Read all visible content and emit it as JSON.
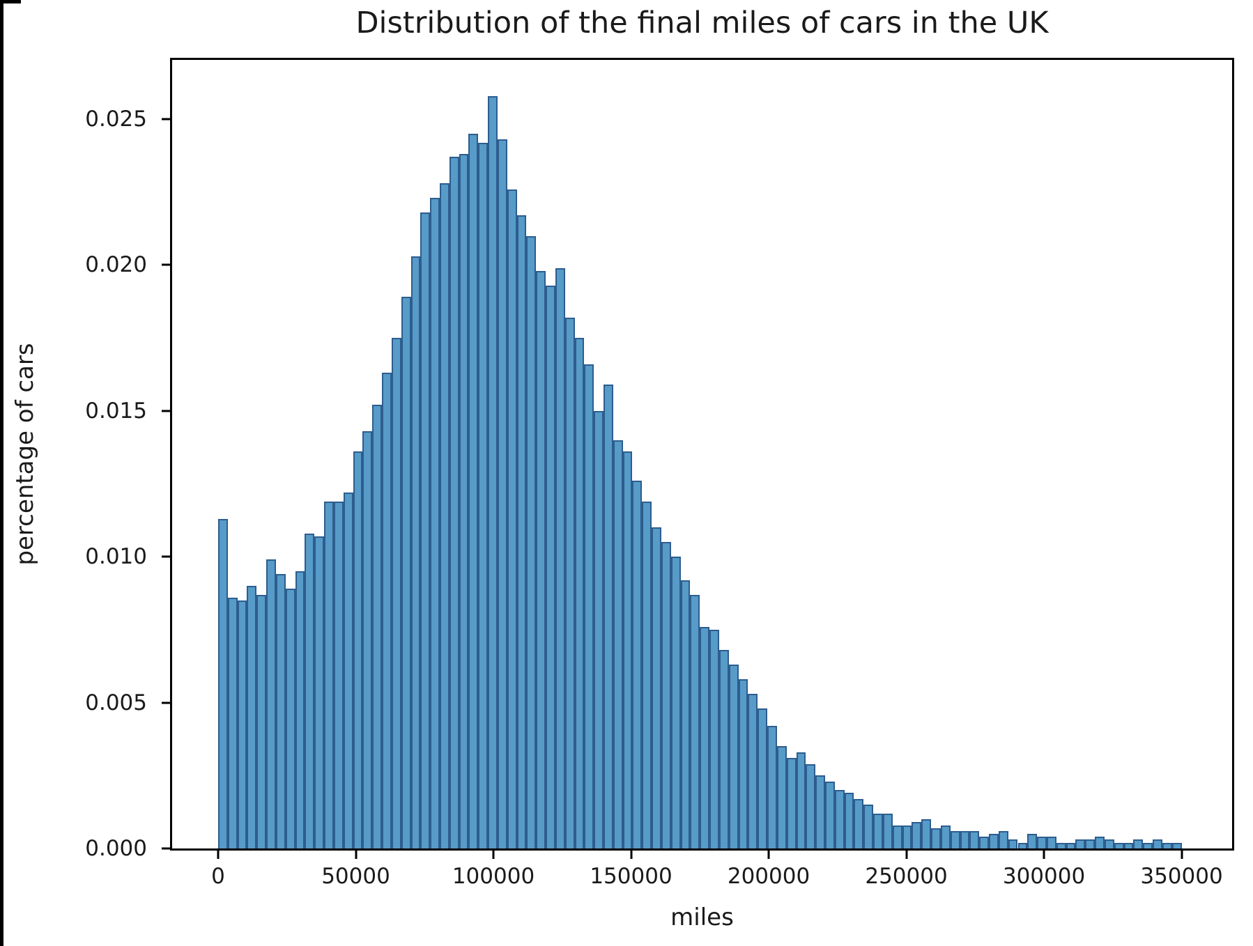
{
  "window": {
    "frame_color": "#000000"
  },
  "chart_data": {
    "type": "bar",
    "subtype": "histogram",
    "title": "Distribution of the final miles of cars in the UK",
    "xlabel": "miles",
    "ylabel": "percentage of cars",
    "bar_color": "#579bc8",
    "bar_edge_color": "#2d5d8e",
    "grid": false,
    "legend_position": "none",
    "bin_start": 0,
    "bin_width": 3500,
    "xlim": [
      -16709,
      368347
    ],
    "ylim": [
      0,
      0.02703
    ],
    "xticks": [
      0,
      50000,
      100000,
      150000,
      200000,
      250000,
      300000,
      350000
    ],
    "xtick_labels": [
      "0",
      "50000",
      "100000",
      "150000",
      "200000",
      "250000",
      "300000",
      "350000"
    ],
    "yticks": [
      0.0,
      0.005,
      0.01,
      0.015,
      0.02,
      0.025
    ],
    "ytick_labels": [
      "0.000",
      "0.005",
      "0.010",
      "0.015",
      "0.020",
      "0.025"
    ],
    "values": [
      0.0113,
      0.0086,
      0.0085,
      0.009,
      0.0087,
      0.0099,
      0.0094,
      0.0089,
      0.0095,
      0.0108,
      0.0107,
      0.0119,
      0.0119,
      0.0122,
      0.0136,
      0.0143,
      0.0152,
      0.0163,
      0.0175,
      0.0189,
      0.0203,
      0.0218,
      0.0223,
      0.0228,
      0.0237,
      0.0238,
      0.0245,
      0.0242,
      0.0258,
      0.0243,
      0.0226,
      0.0217,
      0.021,
      0.0198,
      0.0193,
      0.0199,
      0.0182,
      0.0175,
      0.0166,
      0.015,
      0.0159,
      0.014,
      0.0136,
      0.0126,
      0.0119,
      0.011,
      0.0105,
      0.01,
      0.0092,
      0.0087,
      0.0076,
      0.0075,
      0.0068,
      0.0063,
      0.0058,
      0.0053,
      0.0048,
      0.0042,
      0.0035,
      0.0031,
      0.0033,
      0.0029,
      0.0025,
      0.0023,
      0.002,
      0.0019,
      0.0017,
      0.0015,
      0.0012,
      0.0012,
      0.0008,
      0.0008,
      0.0009,
      0.001,
      0.0007,
      0.0008,
      0.0006,
      0.0006,
      0.0006,
      0.0004,
      0.0005,
      0.0006,
      0.0003,
      0.0002,
      0.0005,
      0.0004,
      0.0004,
      0.0002,
      0.0002,
      0.0003,
      0.0003,
      0.0004,
      0.0003,
      0.0002,
      0.0002,
      0.0003,
      0.0002,
      0.0003,
      0.0002,
      0.0002
    ]
  }
}
